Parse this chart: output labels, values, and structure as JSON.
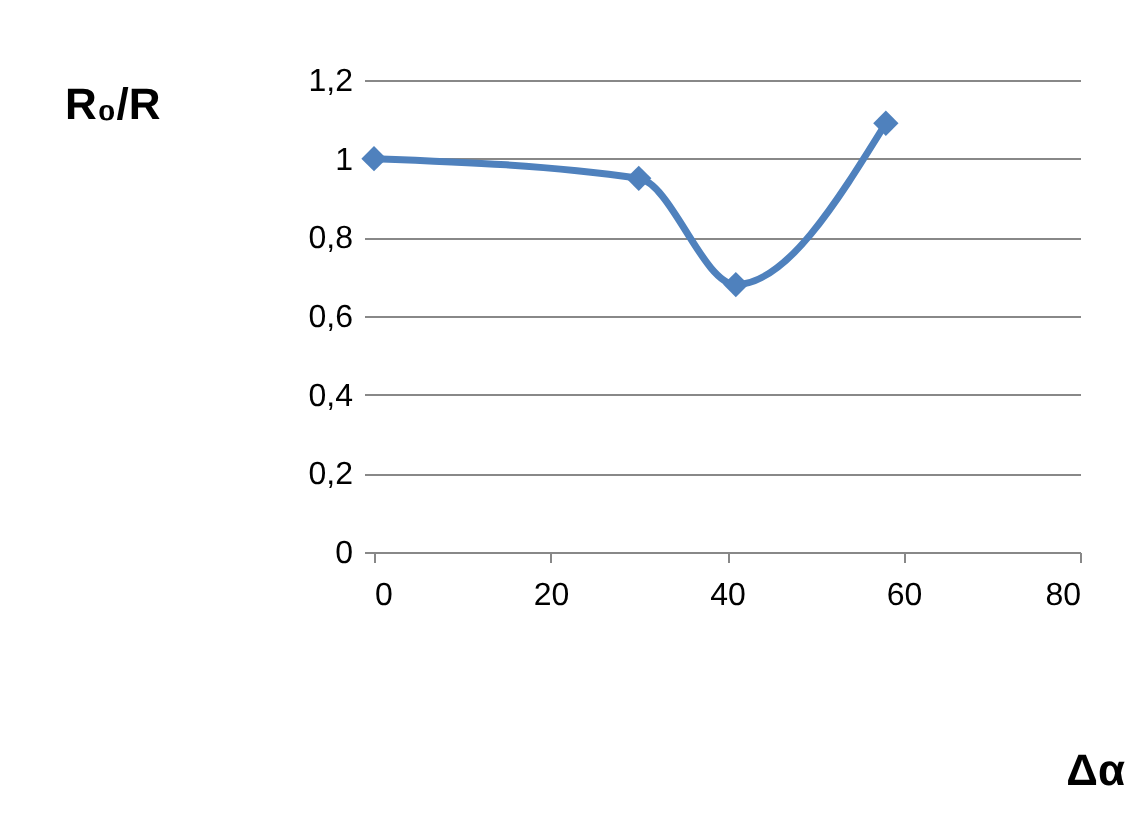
{
  "chart_data": {
    "type": "line",
    "xlabel": "Δα",
    "ylabel": "R₀/R",
    "x": [
      0,
      30,
      41,
      58
    ],
    "series": [
      {
        "color": "#4f81bd",
        "values": [
          1.0,
          0.95,
          0.68,
          1.09
        ]
      }
    ],
    "xlim": [
      0,
      80
    ],
    "xticks": [
      0,
      20,
      40,
      60,
      80
    ],
    "ylim": [
      0,
      1.2
    ],
    "yticks": [
      0,
      {
        "value": 0.2,
        "label": "0,2"
      },
      {
        "value": 0.4,
        "label": "0,4"
      },
      {
        "value": 0.6,
        "label": "0,6"
      },
      {
        "value": 0.8,
        "label": "0,8"
      },
      1,
      {
        "value": 1.2,
        "label": "1,2"
      }
    ],
    "grid": "y",
    "marker": "diamond",
    "line_style": "solid"
  }
}
